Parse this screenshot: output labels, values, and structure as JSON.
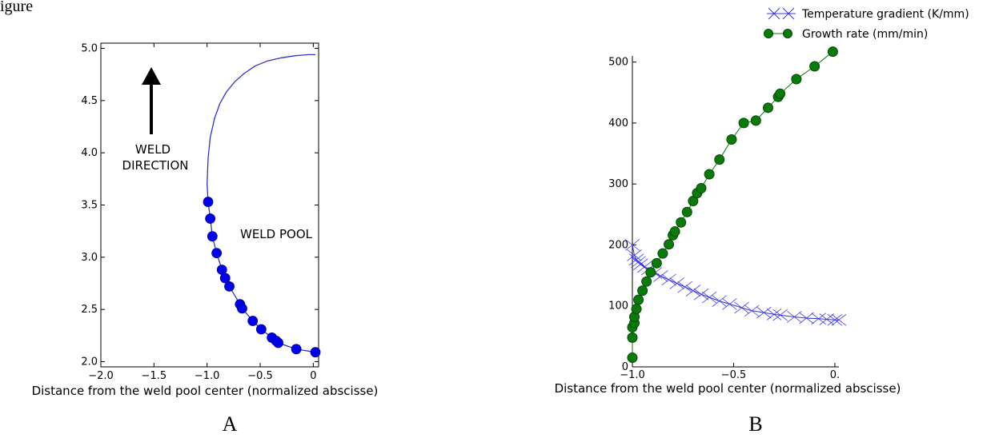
{
  "figure": {
    "header": "igure"
  },
  "chart_data": [
    {
      "type": "scatter",
      "panel_label": "A",
      "xlabel": "Distance from the weld pool center (normalized abscisse)",
      "ylabel": "",
      "xlim": [
        -2.0,
        0.05
      ],
      "ylim": [
        1.95,
        5.05
      ],
      "xticks": [
        -2.0,
        -1.5,
        -1.0,
        -0.5,
        0
      ],
      "xtick_labels": [
        "−2.0",
        "−1.5",
        "−1.0",
        "−0.5",
        "0"
      ],
      "yticks": [
        2.0,
        2.5,
        3.0,
        3.5,
        4.0,
        4.5,
        5.0
      ],
      "ytick_labels": [
        "2.0",
        "2.5",
        "3.0",
        "3.5",
        "4.0",
        "4.5",
        "5.0"
      ],
      "colors": {
        "curve": "#3333cc",
        "points": "#0000ee"
      },
      "annotations": {
        "weld_direction_line1": "WELD",
        "weld_direction_line2": "DIRECTION",
        "weld_pool": "WELD POOL",
        "arrow_icon": "up-arrow-icon"
      },
      "curve": {
        "x": [
          -1.0,
          -0.99,
          -0.97,
          -0.93,
          -0.88,
          -0.82,
          -0.74,
          -0.65,
          -0.55,
          -0.43,
          -0.3,
          -0.17,
          -0.05,
          0.02
        ],
        "y": [
          3.7,
          3.95,
          4.15,
          4.33,
          4.47,
          4.58,
          4.68,
          4.76,
          4.83,
          4.88,
          4.91,
          4.93,
          4.94,
          4.94
        ]
      },
      "series": [
        {
          "x": [
            -0.99,
            -0.97,
            -0.95,
            -0.91,
            -0.86,
            -0.83,
            -0.79,
            -0.69,
            -0.67,
            -0.57,
            -0.49,
            -0.39,
            -0.35,
            -0.33,
            -0.16,
            0.02
          ],
          "y": [
            3.53,
            3.37,
            3.2,
            3.04,
            2.88,
            2.8,
            2.72,
            2.55,
            2.51,
            2.39,
            2.31,
            2.23,
            2.2,
            2.18,
            2.12,
            2.09
          ]
        }
      ]
    },
    {
      "type": "line",
      "panel_label": "B",
      "xlabel": "Distance from the weld pool center (normalized abscisse)",
      "ylabel": "",
      "xlim": [
        -1.0,
        0.02
      ],
      "ylim": [
        0,
        510
      ],
      "xticks": [
        -1.0,
        -0.5,
        0
      ],
      "xtick_labels": [
        "−1.0",
        "−0.5",
        "0."
      ],
      "yticks": [
        0,
        100,
        200,
        300,
        400,
        500
      ],
      "ytick_labels": [
        "0",
        "100",
        "200",
        "300",
        "400",
        "500"
      ],
      "legend_position": "top-right",
      "series": [
        {
          "name": "Temperature gradient (K/mm)",
          "color": "#3333ee",
          "marker": "x",
          "x": [
            -1.0,
            -0.99,
            -0.98,
            -0.97,
            -0.96,
            -0.94,
            -0.92,
            -0.89,
            -0.86,
            -0.82,
            -0.78,
            -0.74,
            -0.7,
            -0.66,
            -0.62,
            -0.57,
            -0.52,
            -0.46,
            -0.41,
            -0.35,
            -0.3,
            -0.27,
            -0.2,
            -0.14,
            -0.08,
            -0.04,
            0.0,
            0.02
          ],
          "y": [
            200,
            183,
            176,
            172,
            168,
            164,
            160,
            154,
            149,
            143,
            137,
            131,
            125,
            119,
            114,
            108,
            103,
            97,
            92,
            89,
            86,
            85,
            82,
            80,
            79,
            78,
            77,
            77
          ]
        },
        {
          "name": "Growth rate (mm/min)",
          "color": "#0a7a0a",
          "marker": "o",
          "x": [
            -1.0,
            -1.0,
            -1.0,
            -0.99,
            -0.99,
            -0.98,
            -0.97,
            -0.95,
            -0.93,
            -0.91,
            -0.88,
            -0.85,
            -0.82,
            -0.8,
            -0.79,
            -0.76,
            -0.73,
            -0.7,
            -0.68,
            -0.66,
            -0.62,
            -0.57,
            -0.51,
            -0.45,
            -0.39,
            -0.33,
            -0.28,
            -0.27,
            -0.19,
            -0.1,
            -0.01
          ],
          "y": [
            15,
            48,
            65,
            72,
            82,
            95,
            110,
            125,
            140,
            155,
            170,
            186,
            201,
            216,
            222,
            237,
            254,
            272,
            285,
            293,
            316,
            340,
            373,
            400,
            404,
            425,
            443,
            448,
            472,
            493,
            517
          ]
        }
      ]
    }
  ]
}
